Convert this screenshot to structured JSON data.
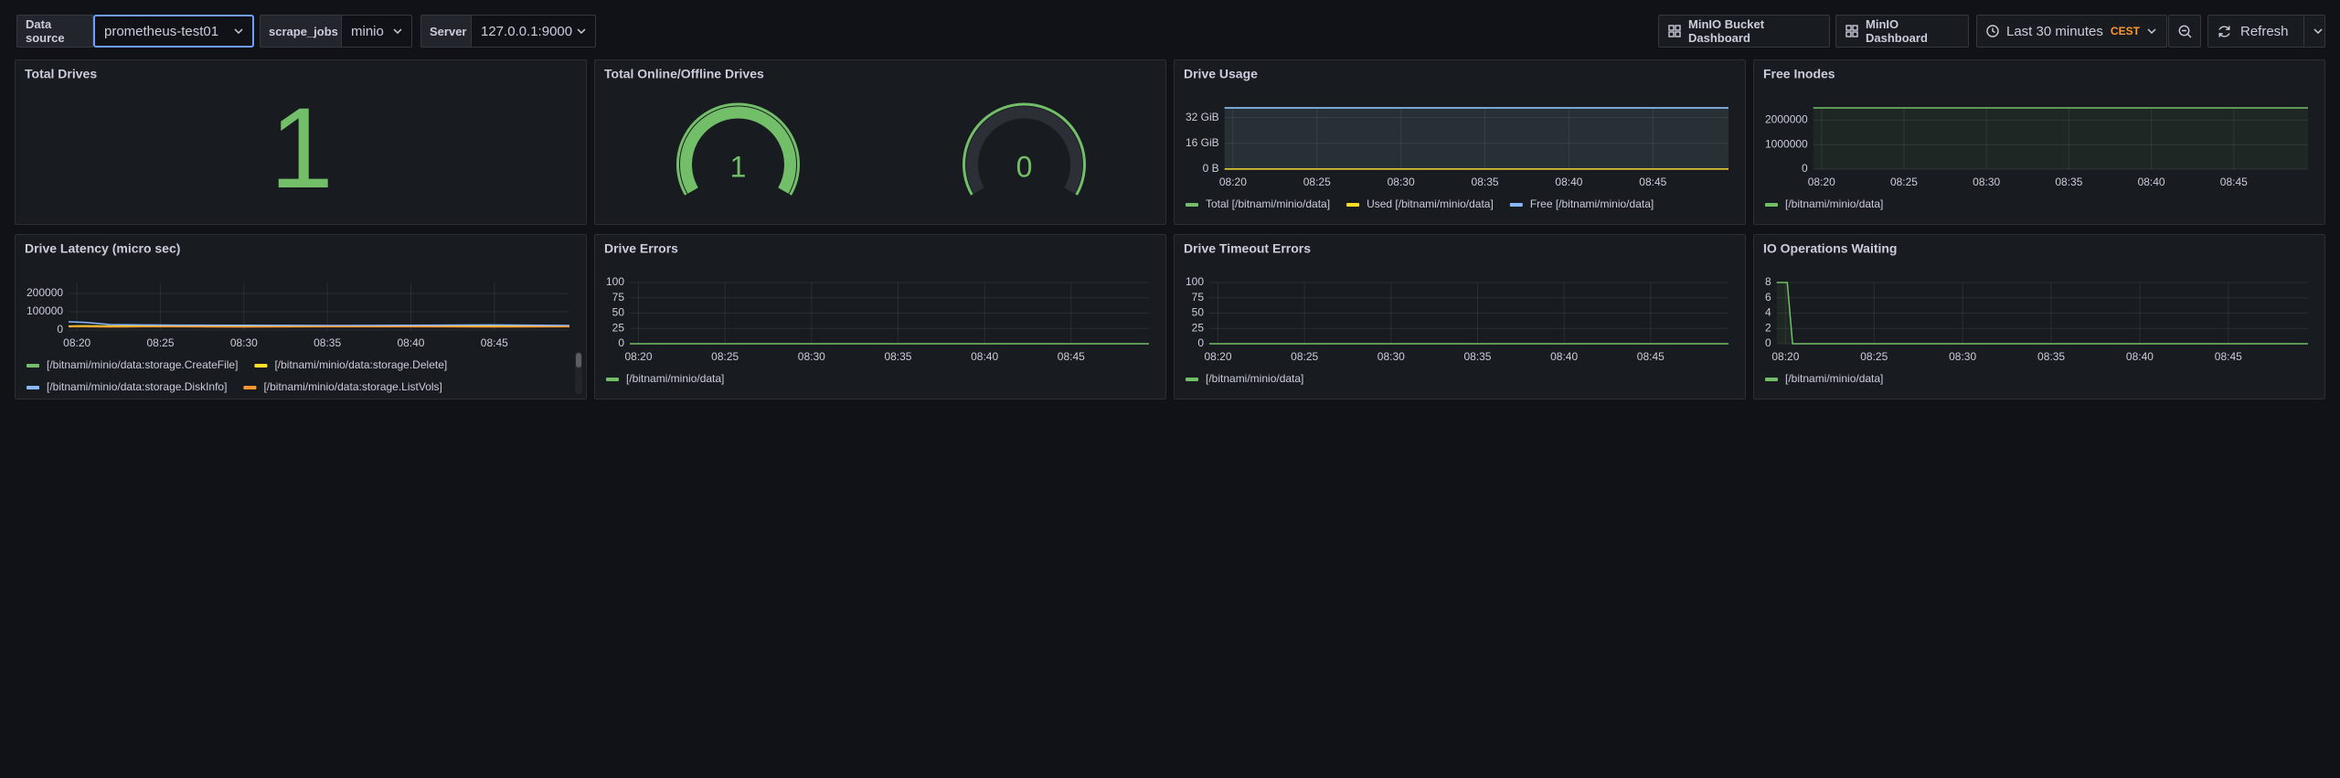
{
  "toolbar": {
    "variables": [
      {
        "label": "Data source",
        "value": "prometheus-test01"
      },
      {
        "label": "scrape_jobs",
        "value": "minio"
      },
      {
        "label": "Server",
        "value": "127.0.0.1:9000"
      }
    ],
    "links": [
      "MinIO Bucket Dashboard",
      "MinIO Dashboard"
    ],
    "time_range": "Last 30 minutes",
    "timezone": "CEST",
    "refresh": "Refresh"
  },
  "panels": [
    {
      "title": "Total Drives",
      "type": "stat",
      "value": 1,
      "color": "#73bf69"
    },
    {
      "title": "Total Online/Offline Drives",
      "type": "gauge",
      "values": [
        1,
        0
      ],
      "min": 0,
      "max": 1,
      "color": "#73bf69"
    },
    {
      "title": "Drive Usage",
      "type": "line",
      "fill": true,
      "x": [
        499.5,
        529.5
      ],
      "series": [
        {
          "name": "Total [/bitnami/minio/data]",
          "color": "#73bf69",
          "values": [
            38,
            38
          ]
        },
        {
          "name": "Used [/bitnami/minio/data]",
          "color": "#fade2a",
          "values": [
            0.1,
            0.1
          ]
        },
        {
          "name": "Free [/bitnami/minio/data]",
          "color": "#8ab8ff",
          "values": [
            38,
            38
          ]
        }
      ],
      "xlim": [
        499.5,
        529.5
      ],
      "xticks": [
        {
          "value": 500,
          "label": "08:20"
        },
        {
          "value": 505,
          "label": "08:25"
        },
        {
          "value": 510,
          "label": "08:30"
        },
        {
          "value": 515,
          "label": "08:35"
        },
        {
          "value": 520,
          "label": "08:40"
        },
        {
          "value": 525,
          "label": "08:45"
        }
      ],
      "ylim": [
        0,
        38
      ],
      "yticks": [
        {
          "value": 0,
          "label": "0 B"
        },
        {
          "value": 16,
          "label": "16 GiB"
        },
        {
          "value": 32,
          "label": "32 GiB"
        }
      ]
    },
    {
      "title": "Free Inodes",
      "type": "line",
      "fill": true,
      "x": [
        499.5,
        529.5
      ],
      "series": [
        {
          "name": "[/bitnami/minio/data]",
          "color": "#73bf69",
          "values": [
            2500000,
            2500000
          ]
        }
      ],
      "xlim": [
        499.5,
        529.5
      ],
      "xticks": [
        {
          "value": 500,
          "label": "08:20"
        },
        {
          "value": 505,
          "label": "08:25"
        },
        {
          "value": 510,
          "label": "08:30"
        },
        {
          "value": 515,
          "label": "08:35"
        },
        {
          "value": 520,
          "label": "08:40"
        },
        {
          "value": 525,
          "label": "08:45"
        }
      ],
      "ylim": [
        0,
        2500000
      ],
      "yticks": [
        0,
        1000000,
        2000000
      ]
    },
    {
      "title": "Drive Latency (micro sec)",
      "type": "line",
      "fill": false,
      "x": [
        499.5,
        500.5,
        502,
        504,
        506,
        510,
        515,
        520,
        525,
        529.5
      ],
      "series": [
        {
          "name": "[/bitnami/minio/data:storage.CreateFile]",
          "color": "#73bf69",
          "values": [
            20000,
            21000,
            20000,
            20000,
            21000,
            20000,
            20000,
            21000,
            20000,
            20000
          ]
        },
        {
          "name": "[/bitnami/minio/data:storage.Delete]",
          "color": "#fade2a",
          "values": [
            22000,
            23000,
            22000,
            22000,
            22000,
            23000,
            22000,
            22000,
            22000,
            22000
          ]
        },
        {
          "name": "[/bitnami/minio/data:storage.DiskInfo]",
          "color": "#8ab8ff",
          "values": [
            45000,
            42000,
            30000,
            28000,
            27000,
            26000,
            25000,
            26000,
            28000,
            25000
          ]
        },
        {
          "name": "[/bitnami/minio/data:storage.ListVols]",
          "color": "#ff9830",
          "values": [
            18000,
            18000,
            17000,
            18000,
            18000,
            17000,
            18000,
            18000,
            17000,
            18000
          ]
        }
      ],
      "xlim": [
        499.5,
        529.5
      ],
      "xticks": [
        {
          "value": 500,
          "label": "08:20"
        },
        {
          "value": 505,
          "label": "08:25"
        },
        {
          "value": 510,
          "label": "08:30"
        },
        {
          "value": 515,
          "label": "08:35"
        },
        {
          "value": 520,
          "label": "08:40"
        },
        {
          "value": 525,
          "label": "08:45"
        }
      ],
      "ylim": [
        0,
        260000
      ],
      "yticks": [
        0,
        100000,
        200000
      ]
    },
    {
      "title": "Drive Errors",
      "type": "line",
      "fill": false,
      "x": [
        499.5,
        529.5
      ],
      "series": [
        {
          "name": "[/bitnami/minio/data]",
          "color": "#73bf69",
          "values": [
            0,
            0
          ]
        }
      ],
      "xlim": [
        499.5,
        529.5
      ],
      "xticks": [
        {
          "value": 500,
          "label": "08:20"
        },
        {
          "value": 505,
          "label": "08:25"
        },
        {
          "value": 510,
          "label": "08:30"
        },
        {
          "value": 515,
          "label": "08:35"
        },
        {
          "value": 520,
          "label": "08:40"
        },
        {
          "value": 525,
          "label": "08:45"
        }
      ],
      "ylim": [
        0,
        100
      ],
      "yticks": [
        0,
        25,
        50,
        75,
        100
      ]
    },
    {
      "title": "Drive Timeout Errors",
      "type": "line",
      "fill": false,
      "x": [
        499.5,
        529.5
      ],
      "series": [
        {
          "name": "[/bitnami/minio/data]",
          "color": "#73bf69",
          "values": [
            0,
            0
          ]
        }
      ],
      "xlim": [
        499.5,
        529.5
      ],
      "xticks": [
        {
          "value": 500,
          "label": "08:20"
        },
        {
          "value": 505,
          "label": "08:25"
        },
        {
          "value": 510,
          "label": "08:30"
        },
        {
          "value": 515,
          "label": "08:35"
        },
        {
          "value": 520,
          "label": "08:40"
        },
        {
          "value": 525,
          "label": "08:45"
        }
      ],
      "ylim": [
        0,
        100
      ],
      "yticks": [
        0,
        25,
        50,
        75,
        100
      ]
    },
    {
      "title": "IO Operations Waiting",
      "type": "line",
      "fill": true,
      "x": [
        499.5,
        500.1,
        500.4,
        529.5
      ],
      "series": [
        {
          "name": "[/bitnami/minio/data]",
          "color": "#73bf69",
          "values": [
            8,
            8,
            0,
            0
          ]
        }
      ],
      "xlim": [
        499.5,
        529.5
      ],
      "xticks": [
        {
          "value": 500,
          "label": "08:20"
        },
        {
          "value": 505,
          "label": "08:25"
        },
        {
          "value": 510,
          "label": "08:30"
        },
        {
          "value": 515,
          "label": "08:35"
        },
        {
          "value": 520,
          "label": "08:40"
        },
        {
          "value": 525,
          "label": "08:45"
        }
      ],
      "ylim": [
        0,
        8
      ],
      "yticks": [
        0,
        2,
        4,
        6,
        8
      ]
    }
  ]
}
